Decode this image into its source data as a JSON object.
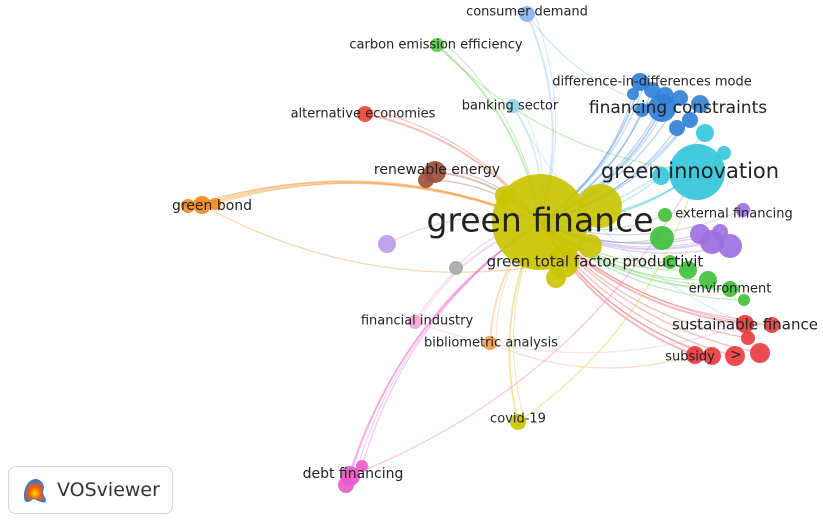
{
  "app": {
    "name": "VOSviewer"
  },
  "map": {
    "nodes": [
      {
        "id": "green-finance",
        "label": "green finance",
        "color": "#c9c400"
      },
      {
        "id": "green-innovation",
        "label": "green innovation",
        "color": "#34c6da"
      },
      {
        "id": "financing-constraints",
        "label": "financing constraints",
        "color": "#2f7fd6"
      },
      {
        "id": "green-tfp",
        "label": "green total factor productivit",
        "color": "#c9c400"
      },
      {
        "id": "renewable-energy",
        "label": "renewable energy",
        "color": "#9b4e3a"
      },
      {
        "id": "green-bond",
        "label": "green bond",
        "color": "#f08a1a"
      },
      {
        "id": "consumer-demand",
        "label": "consumer demand",
        "color": "#8ab4e6"
      },
      {
        "id": "carbon-emission-efficiency",
        "label": "carbon emission efficiency",
        "color": "#57cc42"
      },
      {
        "id": "did-model",
        "label": "difference-in-differences mode",
        "color": "#2f7fd6"
      },
      {
        "id": "banking-sector",
        "label": "banking sector",
        "color": "#8fd3e8"
      },
      {
        "id": "alternative-economies",
        "label": "alternative economies",
        "color": "#e8453c"
      },
      {
        "id": "external-financing",
        "label": "external financing",
        "color": "#9b6fe0"
      },
      {
        "id": "environment",
        "label": "environment",
        "color": "#3fbf3a"
      },
      {
        "id": "sustainable-finance",
        "label": "sustainable finance",
        "color": "#e8383c"
      },
      {
        "id": "subsidy",
        "label": "subsidy",
        "color": "#e8383c"
      },
      {
        "id": "financial-industry",
        "label": "financial industry",
        "color": "#f2a6d8"
      },
      {
        "id": "bibliometric-analysis",
        "label": "bibliometric analysis",
        "color": "#f0a050"
      },
      {
        "id": "covid-19",
        "label": "covid-19",
        "color": "#c9c400"
      },
      {
        "id": "debt-financing",
        "label": "debt financing",
        "color": "#e75ac8"
      }
    ],
    "extra_labels": [
      ">"
    ]
  }
}
